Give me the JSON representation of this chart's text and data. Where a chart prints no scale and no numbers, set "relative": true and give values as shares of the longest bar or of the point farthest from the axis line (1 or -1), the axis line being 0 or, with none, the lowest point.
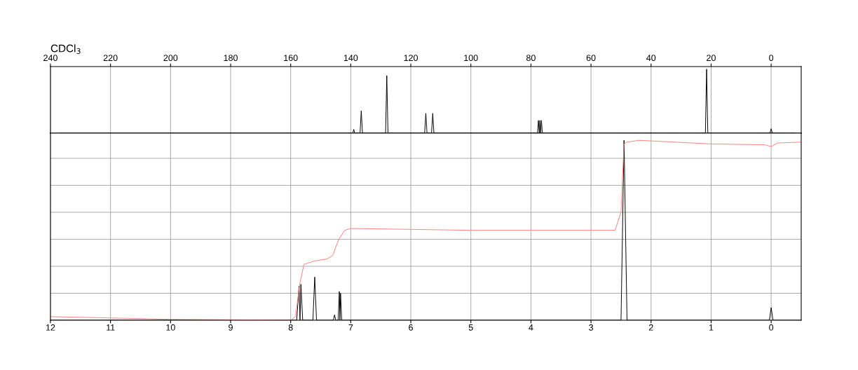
{
  "chart_data": [
    {
      "type": "line",
      "title": "CDCl$_{3}$",
      "relative": true,
      "xlim": [
        240,
        -10
      ],
      "xticks": [
        240,
        220,
        200,
        180,
        160,
        140,
        120,
        100,
        80,
        60,
        40,
        20,
        0
      ],
      "tick_labels": "x",
      "grid": "x",
      "series": [
        {
          "color": "#000000",
          "x": [
            236.5,
            139.3,
            139,
            138.7,
            136.9,
            136.5,
            136.1,
            128.4,
            128,
            127.6,
            115.4,
            115,
            114.6,
            113.1,
            112.7,
            112.3,
            77.8,
            77.5,
            77.2,
            77.0,
            76.8,
            76.5,
            76.2,
            21.9,
            21.5,
            21.1,
            0.4,
            0,
            -0.4,
            -8
          ],
          "values": [
            0,
            0,
            0.06,
            0,
            0,
            0.35,
            0,
            0,
            0.9,
            0,
            0,
            0.31,
            0,
            0,
            0.31,
            0,
            0,
            0.2,
            0,
            0.2,
            0,
            0.2,
            0,
            0,
            1,
            0,
            0,
            0.07,
            0,
            0
          ]
        }
      ]
    },
    {
      "type": "line",
      "relative": true,
      "xlim": [
        12,
        -0.5
      ],
      "xticks": [
        12,
        11,
        10,
        9,
        8,
        7,
        6,
        5,
        4,
        3,
        2,
        1,
        0
      ],
      "tick_labels": "x",
      "grid": true,
      "series": [
        {
          "color": "#000000",
          "x": [
            12,
            7.9,
            7.86,
            7.845,
            7.83,
            7.8,
            7.63,
            7.6,
            7.57,
            7.29,
            7.27,
            7.25,
            7.21,
            7.19,
            7.18,
            7.17,
            7.15,
            2.5,
            2.45,
            2.4,
            0.03,
            0,
            -0.03,
            -0.5
          ],
          "values": [
            0,
            0,
            0.19,
            0,
            0.2,
            0,
            0,
            0.24,
            0,
            0,
            0.03,
            0,
            0,
            0.16,
            0,
            0.15,
            0,
            0,
            1,
            0,
            0,
            0.07,
            0,
            0
          ]
        },
        {
          "color": "#ff8080",
          "x": [
            12,
            10,
            8,
            7.92,
            7.85,
            7.78,
            7.6,
            7.4,
            7.3,
            7.2,
            7.1,
            7.0,
            5,
            2.6,
            2.5,
            2.45,
            2.4,
            2.2,
            1,
            0.1,
            0,
            -0.1,
            -0.5
          ],
          "values": [
            0.02,
            0.005,
            0,
            0.02,
            0.2,
            0.31,
            0.33,
            0.34,
            0.36,
            0.45,
            0.5,
            0.51,
            0.5,
            0.5,
            0.6,
            0.98,
            0.99,
            1.0,
            0.98,
            0.975,
            0.965,
            0.985,
            0.99
          ]
        }
      ]
    }
  ]
}
